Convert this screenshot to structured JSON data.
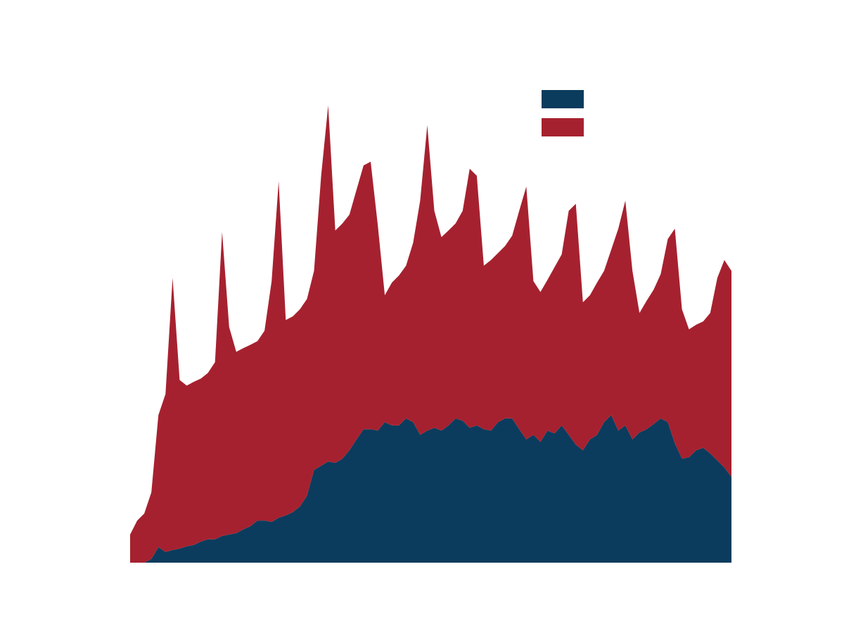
{
  "chart_data": {
    "type": "stacked-area",
    "categories": [
      null,
      null,
      null,
      null,
      null,
      null,
      null,
      null,
      null,
      null,
      null,
      null,
      null,
      null,
      null,
      null,
      null,
      null,
      null,
      null,
      null,
      null,
      null,
      null,
      null,
      null,
      null,
      null,
      null,
      null,
      null,
      null,
      null,
      null,
      null,
      null,
      null,
      null,
      null,
      null,
      null,
      null,
      null,
      null,
      null,
      null,
      null,
      null,
      null,
      null,
      null,
      null,
      null,
      null,
      null,
      null,
      null,
      null,
      null,
      null,
      null,
      null,
      null,
      null,
      null,
      null,
      null,
      null,
      null,
      null,
      null,
      null,
      null,
      null,
      null,
      null,
      null,
      null,
      null,
      null,
      null,
      null,
      null,
      null,
      null,
      null
    ],
    "ylim": [
      0,
      100
    ],
    "series": [
      {
        "color": "#0b3c5d",
        "values": [
          0,
          0,
          0,
          0.8,
          3.3,
          2.3,
          2.7,
          3.0,
          3.5,
          3.8,
          4.5,
          5.0,
          5.0,
          5.7,
          6.0,
          6.3,
          7.1,
          7.8,
          9.0,
          9.0,
          8.7,
          9.6,
          10.1,
          10.8,
          12.0,
          14.3,
          19.8,
          20.7,
          21.6,
          21.3,
          22.2,
          24.0,
          26.3,
          28.5,
          28.5,
          28.2,
          30.0,
          29.3,
          29.3,
          30.8,
          30.0,
          27.3,
          28.2,
          28.8,
          28.2,
          29.3,
          30.8,
          30.3,
          28.8,
          29.3,
          28.5,
          28.2,
          30.0,
          30.8,
          30.8,
          28.5,
          26.3,
          27.3,
          25.8,
          28.2,
          27.6,
          29.3,
          27.3,
          25.2,
          24.0,
          26.3,
          27.3,
          30.0,
          31.5,
          28.2,
          29.3,
          26.3,
          27.8,
          28.5,
          29.6,
          30.8,
          30.0,
          25.5,
          22.2,
          22.5,
          24.0,
          24.5,
          23.3,
          21.8,
          20.3,
          18.3
        ]
      },
      {
        "color": "#a6212f",
        "values": [
          6.0,
          9.0,
          10.5,
          14.2,
          28.2,
          33.7,
          58.1,
          36.0,
          34.3,
          34.8,
          34.8,
          35.5,
          37.8,
          64.9,
          44.3,
          38.7,
          38.7,
          38.7,
          38.3,
          40.5,
          51.4,
          71.8,
          41.7,
          41.8,
          42.1,
          42.0,
          42.5,
          61.9,
          76.0,
          49.6,
          50.2,
          50.3,
          53.3,
          56.3,
          57.1,
          43.9,
          27.1,
          30.5,
          32.0,
          32.6,
          38.3,
          50.0,
          65.2,
          46.3,
          41.3,
          41.6,
          41.6,
          44.8,
          55.3,
          53.3,
          34.9,
          36.4,
          36.1,
          36.8,
          39.0,
          46.6,
          54.0,
          32.8,
          32.0,
          32.2,
          35.5,
          36.5,
          47.8,
          51.4,
          31.6,
          30.8,
          32.5,
          32.3,
          35.3,
          43.1,
          48.0,
          36.0,
          25.5,
          27.4,
          28.7,
          30.8,
          39.1,
          45.8,
          31.9,
          27.3,
          26.8,
          27.0,
          30.0,
          39.0,
          44.3,
          44.0
        ]
      }
    ]
  }
}
